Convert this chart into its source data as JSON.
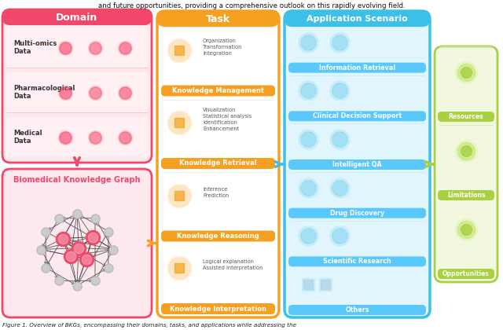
{
  "title_text": "and future opportunities, providing a comprehensive outlook on this rapidly evolving field.",
  "caption": "Figure 1. Overview of BKGs, encompassing their domains, tasks, and applications while addressing the",
  "domain_header": "Domain",
  "domain_header_bg": "#F0476A",
  "domain_bg": "#FDE8EE",
  "domain_border": "#F0476A",
  "domain_items": [
    "Multi-omics\nData",
    "Pharmacological\nData",
    "Medical\nData"
  ],
  "bkg_label": "Biomedical Knowledge Graph",
  "bkg_label_color": "#F0476A",
  "bkg_border": "#F0476A",
  "bkg_bg": "#FDE8EE",
  "task_header": "Task",
  "task_header_bg": "#F5A020",
  "task_border": "#F5A020",
  "task_bg": "#FFFFFF",
  "task_items": [
    {
      "sub": "Organization\nTransformation\nIntegration",
      "label": "Knowledge Management"
    },
    {
      "sub": "Visualization\nStatistical analysis\nIdentification\nEnhancement",
      "label": "Knowledge Retrieval"
    },
    {
      "sub": "Inference\nPrediction",
      "label": "Knowledge Reasoning"
    },
    {
      "sub": "Logical explanation\nAssisted interpretation",
      "label": "Knowledge Interpretation"
    }
  ],
  "app_header": "Application Scenario",
  "app_header_bg": "#3DC0E8",
  "app_border": "#3DC0E8",
  "app_bg": "#E0F5FC",
  "app_items": [
    "Information Retrieval",
    "Clinical Decision Support",
    "Intelligent QA",
    "Drug Discovery",
    "Scientific Research",
    "Others"
  ],
  "app_label_bg": "#5AC8FA",
  "right_border": "#A8D040",
  "right_bg": "#F2F8E0",
  "right_items": [
    "Resources",
    "Limitations",
    "Opportunities"
  ],
  "right_item_bg": "#A8D040",
  "arrow_pink": "#F0476A",
  "arrow_orange": "#F5A020",
  "arrow_blue": "#3DC0E8",
  "arrow_green": "#A8D040",
  "bg_color": "#FFFFFF",
  "fig_width": 6.4,
  "fig_height": 4.2,
  "dpi": 100
}
